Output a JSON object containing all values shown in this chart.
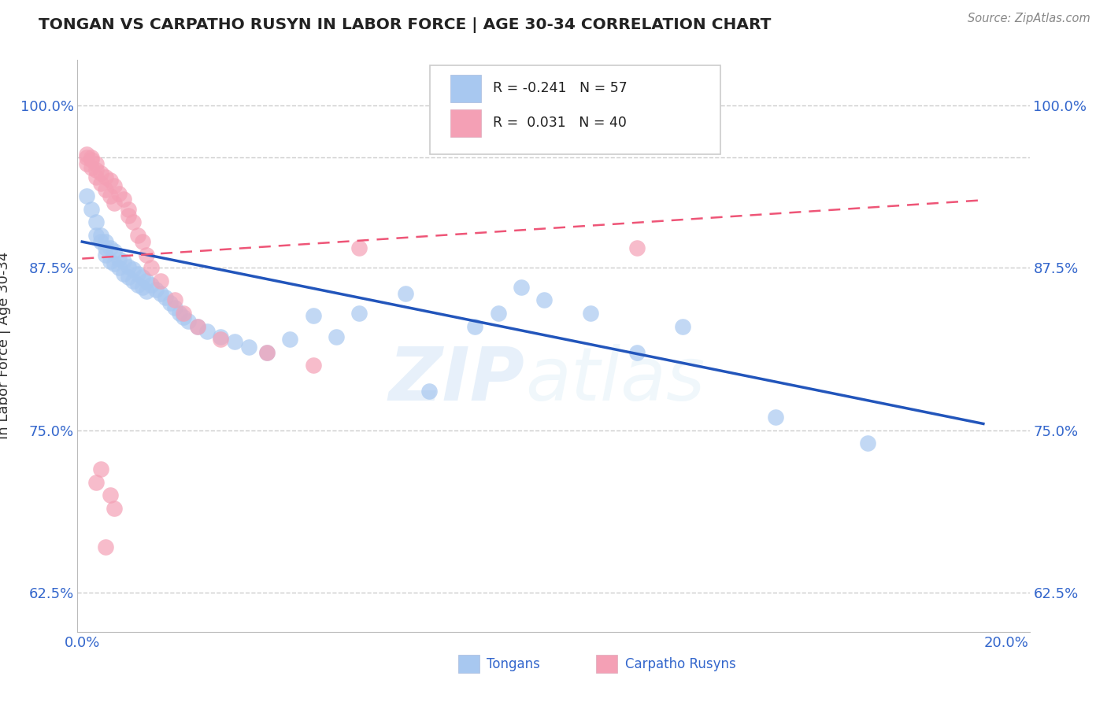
{
  "title": "TONGAN VS CARPATHO RUSYN IN LABOR FORCE | AGE 30-34 CORRELATION CHART",
  "source_text": "Source: ZipAtlas.com",
  "ylabel": "In Labor Force | Age 30-34",
  "xlim": [
    -0.001,
    0.205
  ],
  "ylim": [
    0.595,
    1.035
  ],
  "xticks": [
    0.0,
    0.025,
    0.05,
    0.075,
    0.1,
    0.125,
    0.15,
    0.175,
    0.2
  ],
  "xticklabels": [
    "0.0%",
    "",
    "",
    "",
    "",
    "",
    "",
    "",
    "20.0%"
  ],
  "yticks": [
    0.625,
    0.75,
    0.875,
    1.0
  ],
  "yticklabels": [
    "62.5%",
    "75.0%",
    "87.5%",
    "100.0%"
  ],
  "legend_r_blue": "-0.241",
  "legend_n_blue": "57",
  "legend_r_pink": "0.031",
  "legend_n_pink": "40",
  "legend_label_blue": "Tongans",
  "legend_label_pink": "Carpatho Rusyns",
  "watermark_zip": "ZIP",
  "watermark_atlas": "atlas",
  "blue_color": "#A8C8F0",
  "pink_color": "#F4A0B5",
  "blue_line_color": "#2255BB",
  "pink_line_color": "#EE5577",
  "title_color": "#222222",
  "axis_label_color": "#333333",
  "tick_color": "#3366CC",
  "grid_color": "#CCCCCC",
  "background_color": "#FFFFFF",
  "blue_scatter_x": [
    0.001,
    0.002,
    0.003,
    0.003,
    0.004,
    0.004,
    0.005,
    0.005,
    0.005,
    0.006,
    0.006,
    0.007,
    0.007,
    0.008,
    0.008,
    0.009,
    0.009,
    0.01,
    0.01,
    0.011,
    0.011,
    0.012,
    0.012,
    0.013,
    0.013,
    0.014,
    0.014,
    0.015,
    0.016,
    0.017,
    0.018,
    0.019,
    0.02,
    0.021,
    0.022,
    0.023,
    0.025,
    0.027,
    0.03,
    0.033,
    0.036,
    0.04,
    0.045,
    0.05,
    0.055,
    0.06,
    0.07,
    0.075,
    0.085,
    0.09,
    0.095,
    0.1,
    0.11,
    0.12,
    0.13,
    0.15,
    0.17
  ],
  "blue_scatter_y": [
    0.93,
    0.92,
    0.91,
    0.9,
    0.895,
    0.9,
    0.89,
    0.885,
    0.895,
    0.89,
    0.88,
    0.888,
    0.878,
    0.882,
    0.875,
    0.88,
    0.87,
    0.876,
    0.868,
    0.874,
    0.865,
    0.87,
    0.862,
    0.868,
    0.86,
    0.865,
    0.857,
    0.862,
    0.858,
    0.855,
    0.852,
    0.848,
    0.844,
    0.84,
    0.837,
    0.834,
    0.83,
    0.826,
    0.822,
    0.818,
    0.814,
    0.81,
    0.82,
    0.838,
    0.822,
    0.84,
    0.855,
    0.78,
    0.83,
    0.84,
    0.86,
    0.85,
    0.84,
    0.81,
    0.83,
    0.76,
    0.74
  ],
  "pink_scatter_x": [
    0.001,
    0.001,
    0.001,
    0.002,
    0.002,
    0.002,
    0.003,
    0.003,
    0.003,
    0.004,
    0.004,
    0.005,
    0.005,
    0.006,
    0.006,
    0.007,
    0.007,
    0.008,
    0.009,
    0.01,
    0.01,
    0.011,
    0.012,
    0.013,
    0.014,
    0.015,
    0.017,
    0.02,
    0.022,
    0.025,
    0.03,
    0.04,
    0.05,
    0.06,
    0.003,
    0.004,
    0.005,
    0.006,
    0.007,
    0.12
  ],
  "pink_scatter_y": [
    0.96,
    0.955,
    0.962,
    0.958,
    0.952,
    0.96,
    0.95,
    0.945,
    0.955,
    0.948,
    0.94,
    0.945,
    0.935,
    0.942,
    0.93,
    0.938,
    0.925,
    0.932,
    0.928,
    0.92,
    0.915,
    0.91,
    0.9,
    0.895,
    0.885,
    0.875,
    0.865,
    0.85,
    0.84,
    0.83,
    0.82,
    0.81,
    0.8,
    0.89,
    0.71,
    0.72,
    0.66,
    0.7,
    0.69,
    0.89
  ],
  "blue_line_x": [
    0.0,
    0.195
  ],
  "blue_line_y": [
    0.895,
    0.755
  ],
  "pink_line_x": [
    0.0,
    0.195
  ],
  "pink_line_y": [
    0.882,
    0.927
  ]
}
